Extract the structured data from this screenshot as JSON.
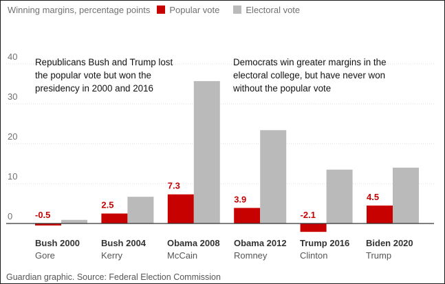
{
  "legend": {
    "title": "Winning margins, percentage points",
    "items": [
      {
        "label": "Popular vote",
        "color": "#c70000"
      },
      {
        "label": "Electoral vote",
        "color": "#bababa"
      }
    ]
  },
  "annotations": {
    "left": [
      "Republicans Bush and Trump lost",
      "the popular vote but won the",
      "presidency in 2000 and 2016"
    ],
    "right": [
      "Democrats win greater margins in the",
      "electoral college, but have never won",
      "without the popular vote"
    ]
  },
  "source": "Guardian graphic. Source: Federal Election Commission",
  "chart_data": {
    "type": "bar",
    "title": "Winning margins, percentage points",
    "ylim": [
      -2.5,
      42
    ],
    "yticks": [
      0,
      10,
      20,
      30,
      40
    ],
    "grid": true,
    "legend_position": "top-left",
    "categories": [
      {
        "year": "Bush 2000",
        "opponent": "Gore"
      },
      {
        "year": "Bush 2004",
        "opponent": "Kerry"
      },
      {
        "year": "Obama 2008",
        "opponent": "McCain"
      },
      {
        "year": "Obama 2012",
        "opponent": "Romney"
      },
      {
        "year": "Trump 2016",
        "opponent": "Clinton"
      },
      {
        "year": "Biden 2020",
        "opponent": "Trump"
      }
    ],
    "series": [
      {
        "name": "Popular vote",
        "color": "#c70000",
        "values": [
          -0.5,
          2.5,
          7.3,
          3.9,
          -2.1,
          4.5
        ],
        "labels": [
          "-0.5",
          "2.5",
          "7.3",
          "3.9",
          "-2.1",
          "4.5"
        ]
      },
      {
        "name": "Electoral vote",
        "color": "#bababa",
        "values": [
          0.9,
          6.7,
          35.7,
          23.4,
          13.5,
          14.0
        ]
      }
    ]
  }
}
